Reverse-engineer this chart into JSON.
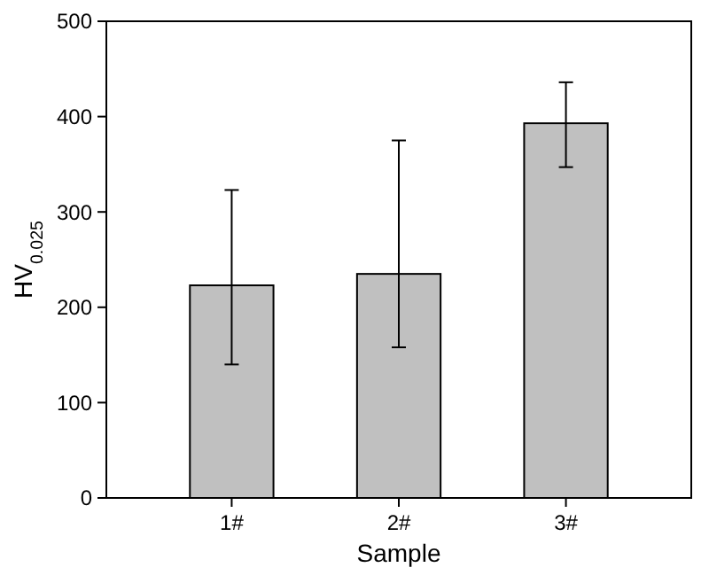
{
  "chart_data": {
    "type": "bar",
    "xlabel": "Sample",
    "ylabel": "HV$_{0.025}$",
    "categories": [
      "1#",
      "2#",
      "3#"
    ],
    "values": [
      223,
      235,
      393
    ],
    "color": "#c0c0c0",
    "errors": [
      [
        140,
        323
      ],
      [
        158,
        375
      ],
      [
        347,
        436
      ]
    ],
    "ylim": [
      0,
      500
    ],
    "yticks": [
      0,
      100,
      200,
      300,
      400,
      500
    ],
    "grid": false
  }
}
